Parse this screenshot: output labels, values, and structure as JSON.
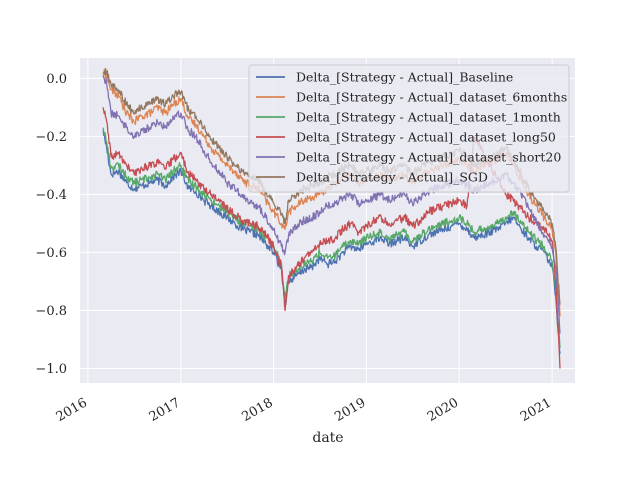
{
  "chart_data": {
    "type": "line",
    "xlabel": "date",
    "ylabel": "",
    "x_ticks": [
      "2016",
      "2017",
      "2018",
      "2019",
      "2020",
      "2021"
    ],
    "y_ticks": [
      "0.0",
      "−0.2",
      "−0.4",
      "−0.6",
      "−0.8",
      "−1.0"
    ],
    "xlim": [
      "2015-12-01",
      "2021-04-01"
    ],
    "ylim": [
      -1.05,
      0.07
    ],
    "grid": true,
    "background": "#EAEAF2",
    "legend_position": "top-right",
    "x": [
      "2016-03-01",
      "2016-03-15",
      "2016-04-01",
      "2016-05-01",
      "2016-06-01",
      "2016-07-01",
      "2016-08-01",
      "2016-09-01",
      "2016-10-01",
      "2016-11-01",
      "2016-12-01",
      "2017-01-01",
      "2017-02-01",
      "2017-03-01",
      "2017-04-01",
      "2017-05-01",
      "2017-06-01",
      "2017-07-01",
      "2017-08-01",
      "2017-09-01",
      "2017-10-01",
      "2017-11-01",
      "2017-12-01",
      "2018-01-01",
      "2018-02-01",
      "2018-02-15",
      "2018-03-01",
      "2018-04-01",
      "2018-05-01",
      "2018-06-01",
      "2018-07-01",
      "2018-08-01",
      "2018-09-01",
      "2018-10-01",
      "2018-11-01",
      "2018-12-01",
      "2019-01-01",
      "2019-02-01",
      "2019-03-01",
      "2019-04-01",
      "2019-05-01",
      "2019-06-01",
      "2019-07-01",
      "2019-08-01",
      "2019-09-01",
      "2019-10-01",
      "2019-11-01",
      "2019-12-01",
      "2020-01-01",
      "2020-02-01",
      "2020-03-01",
      "2020-04-01",
      "2020-05-01",
      "2020-06-01",
      "2020-07-01",
      "2020-08-01",
      "2020-09-01",
      "2020-10-01",
      "2020-11-01",
      "2020-12-01",
      "2021-01-01",
      "2021-01-15",
      "2021-02-01"
    ],
    "series": [
      {
        "name": "Delta_[Strategy - Actual]_Baseline",
        "color": "#4C72B0",
        "values": [
          -0.18,
          -0.24,
          -0.33,
          -0.32,
          -0.36,
          -0.38,
          -0.37,
          -0.36,
          -0.35,
          -0.37,
          -0.34,
          -0.32,
          -0.38,
          -0.39,
          -0.42,
          -0.44,
          -0.46,
          -0.48,
          -0.5,
          -0.52,
          -0.53,
          -0.54,
          -0.57,
          -0.6,
          -0.66,
          -0.78,
          -0.7,
          -0.68,
          -0.66,
          -0.65,
          -0.62,
          -0.64,
          -0.63,
          -0.6,
          -0.58,
          -0.59,
          -0.57,
          -0.56,
          -0.55,
          -0.57,
          -0.56,
          -0.55,
          -0.58,
          -0.56,
          -0.54,
          -0.53,
          -0.52,
          -0.51,
          -0.5,
          -0.52,
          -0.55,
          -0.54,
          -0.53,
          -0.52,
          -0.5,
          -0.48,
          -0.52,
          -0.55,
          -0.58,
          -0.6,
          -0.65,
          -0.75,
          -0.95
        ]
      },
      {
        "name": "Delta_[Strategy - Actual]_dataset_6months",
        "color": "#DD8452",
        "values": [
          0.02,
          0.01,
          -0.04,
          -0.06,
          -0.12,
          -0.15,
          -0.13,
          -0.12,
          -0.1,
          -0.12,
          -0.09,
          -0.07,
          -0.14,
          -0.16,
          -0.2,
          -0.24,
          -0.27,
          -0.3,
          -0.32,
          -0.35,
          -0.37,
          -0.38,
          -0.42,
          -0.46,
          -0.5,
          -0.52,
          -0.46,
          -0.44,
          -0.42,
          -0.41,
          -0.4,
          -0.38,
          -0.36,
          -0.34,
          -0.33,
          -0.36,
          -0.35,
          -0.34,
          -0.33,
          -0.35,
          -0.34,
          -0.33,
          -0.36,
          -0.34,
          -0.32,
          -0.31,
          -0.3,
          -0.29,
          -0.28,
          -0.3,
          -0.32,
          -0.3,
          -0.29,
          -0.28,
          -0.26,
          -0.3,
          -0.35,
          -0.4,
          -0.44,
          -0.48,
          -0.52,
          -0.6,
          -0.82
        ]
      },
      {
        "name": "Delta_[Strategy - Actual]_dataset_1month",
        "color": "#55A868",
        "values": [
          -0.17,
          -0.22,
          -0.31,
          -0.3,
          -0.34,
          -0.36,
          -0.35,
          -0.34,
          -0.33,
          -0.35,
          -0.32,
          -0.3,
          -0.36,
          -0.37,
          -0.4,
          -0.42,
          -0.44,
          -0.46,
          -0.48,
          -0.5,
          -0.51,
          -0.52,
          -0.55,
          -0.58,
          -0.64,
          -0.76,
          -0.68,
          -0.66,
          -0.64,
          -0.63,
          -0.6,
          -0.62,
          -0.61,
          -0.58,
          -0.56,
          -0.57,
          -0.55,
          -0.54,
          -0.53,
          -0.55,
          -0.54,
          -0.53,
          -0.56,
          -0.54,
          -0.52,
          -0.51,
          -0.5,
          -0.49,
          -0.48,
          -0.5,
          -0.53,
          -0.52,
          -0.51,
          -0.5,
          -0.48,
          -0.46,
          -0.5,
          -0.53,
          -0.56,
          -0.58,
          -0.63,
          -0.73,
          -0.93
        ]
      },
      {
        "name": "Delta_[Strategy - Actual]_dataset_long50",
        "color": "#C44E52",
        "values": [
          -0.1,
          -0.15,
          -0.27,
          -0.26,
          -0.3,
          -0.33,
          -0.31,
          -0.3,
          -0.29,
          -0.31,
          -0.28,
          -0.26,
          -0.33,
          -0.35,
          -0.38,
          -0.4,
          -0.42,
          -0.45,
          -0.47,
          -0.49,
          -0.5,
          -0.51,
          -0.54,
          -0.58,
          -0.65,
          -0.8,
          -0.68,
          -0.65,
          -0.62,
          -0.6,
          -0.57,
          -0.56,
          -0.55,
          -0.52,
          -0.5,
          -0.53,
          -0.51,
          -0.49,
          -0.48,
          -0.5,
          -0.49,
          -0.48,
          -0.51,
          -0.49,
          -0.46,
          -0.45,
          -0.44,
          -0.43,
          -0.42,
          -0.44,
          -0.2,
          -0.25,
          -0.3,
          -0.35,
          -0.4,
          -0.42,
          -0.45,
          -0.48,
          -0.5,
          -0.52,
          -0.56,
          -0.7,
          -1.0
        ]
      },
      {
        "name": "Delta_[Strategy - Actual]_dataset_short20",
        "color": "#8172B2",
        "values": [
          0.01,
          -0.02,
          -0.12,
          -0.13,
          -0.17,
          -0.2,
          -0.18,
          -0.17,
          -0.15,
          -0.17,
          -0.13,
          -0.12,
          -0.18,
          -0.2,
          -0.25,
          -0.29,
          -0.32,
          -0.36,
          -0.38,
          -0.41,
          -0.43,
          -0.44,
          -0.48,
          -0.52,
          -0.58,
          -0.6,
          -0.54,
          -0.51,
          -0.49,
          -0.48,
          -0.46,
          -0.44,
          -0.43,
          -0.41,
          -0.4,
          -0.43,
          -0.42,
          -0.41,
          -0.4,
          -0.42,
          -0.41,
          -0.4,
          -0.43,
          -0.41,
          -0.39,
          -0.38,
          -0.37,
          -0.36,
          -0.35,
          -0.37,
          -0.39,
          -0.37,
          -0.36,
          -0.35,
          -0.33,
          -0.36,
          -0.4,
          -0.45,
          -0.5,
          -0.54,
          -0.58,
          -0.65,
          -0.88
        ]
      },
      {
        "name": "Delta_[Strategy - Actual]_SGD",
        "color": "#937860",
        "values": [
          0.02,
          0.02,
          -0.02,
          -0.04,
          -0.09,
          -0.12,
          -0.1,
          -0.09,
          -0.07,
          -0.09,
          -0.06,
          -0.05,
          -0.11,
          -0.13,
          -0.17,
          -0.21,
          -0.24,
          -0.27,
          -0.3,
          -0.32,
          -0.34,
          -0.35,
          -0.39,
          -0.43,
          -0.47,
          -0.5,
          -0.42,
          -0.4,
          -0.38,
          -0.37,
          -0.36,
          -0.34,
          -0.33,
          -0.31,
          -0.3,
          -0.33,
          -0.32,
          -0.31,
          -0.3,
          -0.32,
          -0.31,
          -0.3,
          -0.33,
          -0.31,
          -0.29,
          -0.28,
          -0.27,
          -0.26,
          -0.25,
          -0.27,
          -0.3,
          -0.28,
          -0.27,
          -0.26,
          -0.24,
          -0.28,
          -0.33,
          -0.38,
          -0.42,
          -0.46,
          -0.5,
          -0.58,
          -0.78
        ]
      }
    ]
  }
}
